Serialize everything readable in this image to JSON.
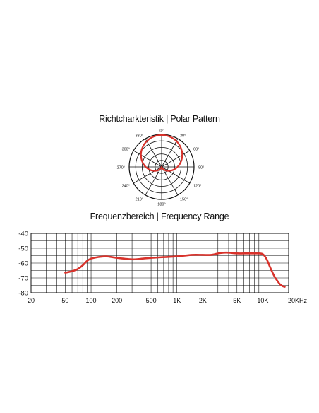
{
  "polar_title": "Richtcharkteristik | Polar Pattern",
  "freq_title": "Frequenzbereich | Frequency Range",
  "colors": {
    "curve": "#d8322b",
    "grid": "#111111",
    "background": "#ffffff"
  },
  "chart_data": [
    {
      "type": "polar",
      "title": "Richtcharkteristik | Polar Pattern",
      "angle_labels": [
        "0°",
        "30°",
        "60°",
        "90°",
        "120°",
        "150°",
        "180°",
        "210°",
        "240°",
        "270°",
        "300°",
        "330°"
      ],
      "rings": 5,
      "pattern": "cardioid",
      "angles_deg": [
        0,
        30,
        60,
        90,
        120,
        150,
        180,
        210,
        240,
        270,
        300,
        330
      ],
      "relative_level": [
        1.0,
        0.93,
        0.75,
        0.5,
        0.25,
        0.07,
        0.0,
        0.07,
        0.25,
        0.5,
        0.75,
        0.93
      ]
    },
    {
      "type": "line",
      "title": "Frequenzbereich | Frequency Range",
      "x_scale": "log",
      "xlim": [
        20,
        20000
      ],
      "ylim": [
        -80,
        -40
      ],
      "x_tick_values": [
        20,
        50,
        100,
        200,
        500,
        1000,
        2000,
        5000,
        10000,
        20000
      ],
      "x_tick_labels": [
        "20",
        "50",
        "100",
        "200",
        "500",
        "1K",
        "2K",
        "5K",
        "10K",
        "20KHz"
      ],
      "y_ticks": [
        -40,
        -50,
        -60,
        -70,
        -80
      ],
      "y_tick_labels": [
        "-40",
        "-50",
        "-60",
        "-70",
        "-80"
      ],
      "grid": true,
      "series": [
        {
          "x": [
            50,
            60,
            70,
            80,
            90,
            100,
            120,
            150,
            200,
            300,
            400,
            500,
            700,
            1000,
            1500,
            2000,
            2500,
            3000,
            3500,
            4000,
            5000,
            6000,
            7000,
            8000,
            9000,
            10000,
            11000,
            12000,
            13000,
            14000,
            15000,
            16000,
            17000,
            18000
          ],
          "y": [
            -66.5,
            -65.5,
            -64,
            -61.5,
            -58.5,
            -57,
            -56,
            -55.5,
            -56.5,
            -57.5,
            -57,
            -56.5,
            -56,
            -55.5,
            -54.5,
            -54.5,
            -54.5,
            -53.5,
            -53,
            -53,
            -53.5,
            -53.5,
            -53.5,
            -53.5,
            -53.5,
            -54,
            -57,
            -62,
            -66.5,
            -70,
            -72.5,
            -74.5,
            -75.5,
            -76
          ]
        }
      ]
    }
  ]
}
